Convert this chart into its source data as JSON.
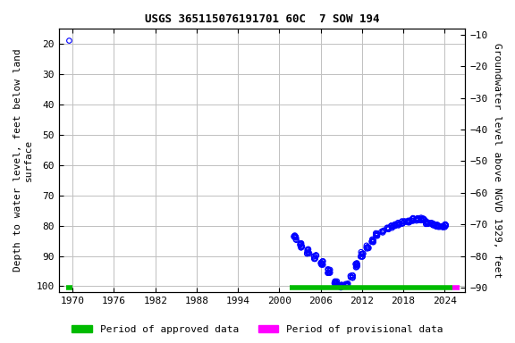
{
  "title": "USGS 365115076191701 60C  7 SOW 194",
  "ylabel_left": "Depth to water level, feet below land\nsurface",
  "ylabel_right": "Groundwater level above NGVD 1929, feet",
  "xlim": [
    1968,
    2027
  ],
  "ylim_left": [
    102,
    15
  ],
  "ylim_right": [
    -91.5,
    -8
  ],
  "xticks": [
    1970,
    1976,
    1982,
    1988,
    1994,
    2000,
    2006,
    2012,
    2018,
    2024
  ],
  "yticks_left": [
    20,
    30,
    40,
    50,
    60,
    70,
    80,
    90,
    100
  ],
  "yticks_right": [
    -10,
    -20,
    -30,
    -40,
    -50,
    -60,
    -70,
    -80,
    -90
  ],
  "marker_color": "#0000ff",
  "marker_size": 4.5,
  "approved_color": "#00bb00",
  "provisional_color": "#ff00ff",
  "legend_approved": "Period of approved data",
  "legend_provisional": "Period of provisional data",
  "grid_color": "#c0c0c0",
  "bg_color": "white",
  "font_family": "monospace",
  "title_fontsize": 9,
  "label_fontsize": 8,
  "tick_fontsize": 8
}
